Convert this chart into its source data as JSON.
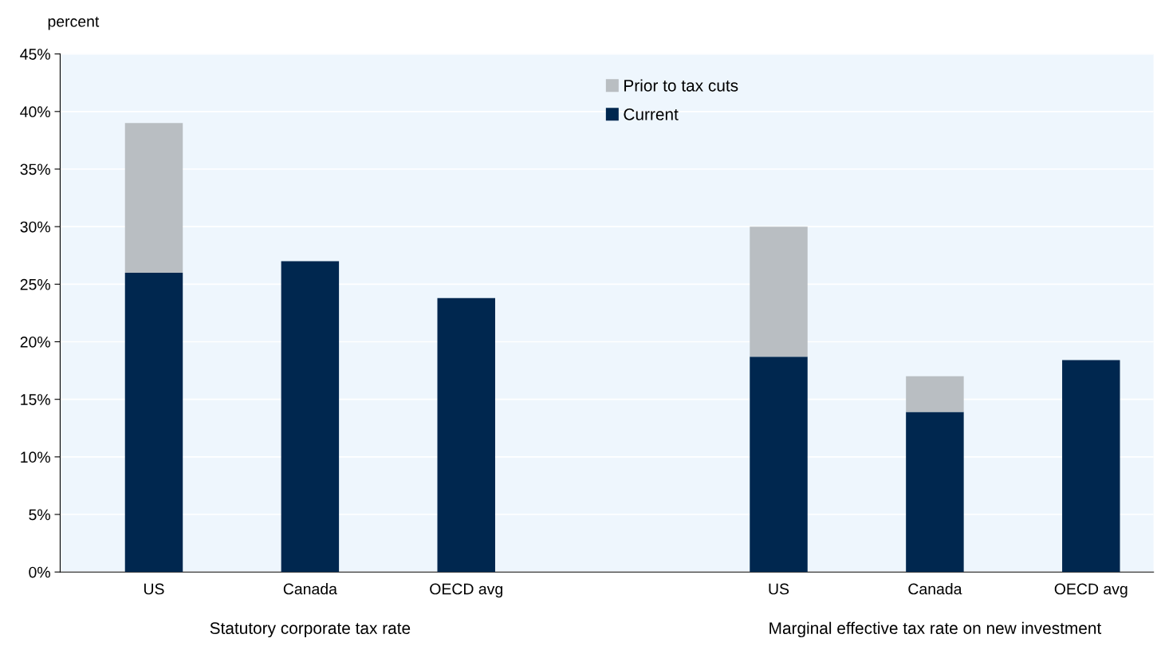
{
  "chart_data": {
    "type": "bar",
    "stacked": true,
    "ylabel": "percent",
    "categories": [
      "US",
      "Canada",
      "OECD avg",
      null,
      "US",
      "Canada",
      "OECD avg"
    ],
    "series": [
      {
        "name": "Current",
        "color": "#00274f",
        "values": [
          26,
          27,
          23.8,
          null,
          18.7,
          13.9,
          18.4
        ]
      },
      {
        "name": "Prior to tax cuts",
        "color": "#b9bec2",
        "values": [
          13,
          null,
          null,
          null,
          11.3,
          3.1,
          null
        ]
      }
    ],
    "ylim": [
      0,
      45
    ],
    "yticks": [
      {
        "value": 0,
        "label": "0%"
      },
      {
        "value": 5,
        "label": "5%"
      },
      {
        "value": 10,
        "label": "10%"
      },
      {
        "value": 15,
        "label": "15%"
      },
      {
        "value": 20,
        "label": "20%"
      },
      {
        "value": 25,
        "label": "25%"
      },
      {
        "value": 30,
        "label": "30%"
      },
      {
        "value": 35,
        "label": "35%"
      },
      {
        "value": 40,
        "label": "40%"
      },
      {
        "value": 45,
        "label": "45%"
      }
    ],
    "grid": "y",
    "legend": "top",
    "annotations": [
      "Statutory corporate tax rate",
      "Marginal effective tax rate on new investment"
    ]
  }
}
